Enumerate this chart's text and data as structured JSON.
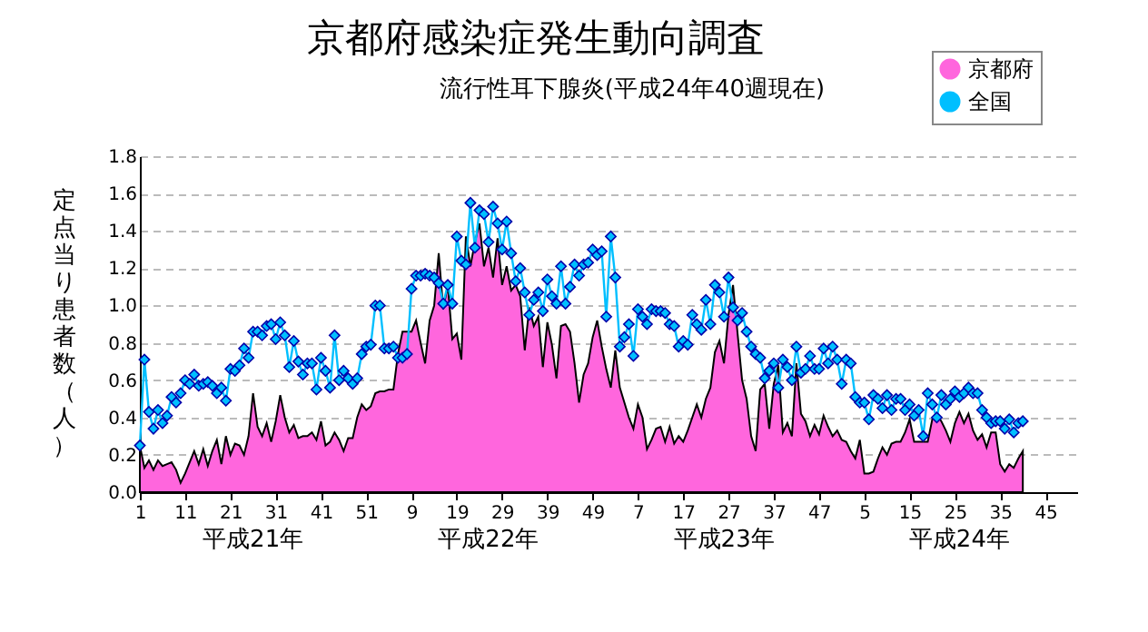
{
  "chart_data": {
    "type": "line",
    "title": "京都府感染症発生動向調査",
    "subtitle": "流行性耳下腺炎(平成24年40週現在)",
    "ylabel": "定点当り患者数（人）",
    "annotations": [
      "平成21年",
      "平成22年",
      "平成23年",
      "平成24年"
    ],
    "categories": [
      "1",
      null,
      null,
      null,
      null,
      null,
      null,
      null,
      null,
      null,
      "11",
      null,
      null,
      null,
      null,
      null,
      null,
      null,
      null,
      null,
      "21",
      null,
      null,
      null,
      null,
      null,
      null,
      null,
      null,
      null,
      "31",
      null,
      null,
      null,
      null,
      null,
      null,
      null,
      null,
      null,
      "41",
      null,
      null,
      null,
      null,
      null,
      null,
      null,
      null,
      null,
      "51",
      null,
      null,
      null,
      null,
      null,
      null,
      null,
      null,
      null,
      "9",
      null,
      null,
      null,
      null,
      null,
      null,
      null,
      null,
      null,
      "19",
      null,
      null,
      null,
      null,
      null,
      null,
      null,
      null,
      null,
      "29",
      null,
      null,
      null,
      null,
      null,
      null,
      null,
      null,
      null,
      "39",
      null,
      null,
      null,
      null,
      null,
      null,
      null,
      null,
      null,
      "49",
      null,
      null,
      null,
      null,
      null,
      null,
      null,
      null,
      null,
      "7",
      null,
      null,
      null,
      null,
      null,
      null,
      null,
      null,
      null,
      "17",
      null,
      null,
      null,
      null,
      null,
      null,
      null,
      null,
      null,
      "27",
      null,
      null,
      null,
      null,
      null,
      null,
      null,
      null,
      null,
      "37",
      null,
      null,
      null,
      null,
      null,
      null,
      null,
      null,
      null,
      "47",
      null,
      null,
      null,
      null,
      null,
      null,
      null,
      null,
      null,
      "5",
      null,
      null,
      null,
      null,
      null,
      null,
      null,
      null,
      null,
      "15",
      null,
      null,
      null,
      null,
      null,
      null,
      null,
      null,
      null,
      "25",
      null,
      null,
      null,
      null,
      null,
      null,
      null,
      null,
      null,
      "35",
      null,
      null,
      null,
      null,
      null,
      null,
      null,
      null,
      null,
      "45",
      null,
      null,
      null,
      null,
      null,
      null,
      null
    ],
    "series": [
      {
        "type": "area",
        "name": "京都府",
        "color": "#ff66dd",
        "values": [
          0.25,
          0.13,
          0.17,
          0.12,
          0.17,
          0.14,
          0.15,
          0.16,
          0.12,
          0.05,
          0.1,
          0.16,
          0.22,
          0.15,
          0.23,
          0.14,
          0.22,
          0.28,
          0.15,
          0.3,
          0.2,
          0.26,
          0.25,
          0.2,
          0.3,
          0.53,
          0.35,
          0.3,
          0.37,
          0.27,
          0.38,
          0.52,
          0.4,
          0.32,
          0.36,
          0.29,
          0.3,
          0.3,
          0.32,
          0.28,
          0.38,
          0.25,
          0.27,
          0.32,
          0.28,
          0.22,
          0.29,
          0.29,
          0.4,
          0.47,
          0.44,
          0.46,
          0.53,
          0.54,
          0.54,
          0.55,
          0.55,
          0.74,
          0.86,
          0.86,
          0.86,
          0.92,
          0.8,
          0.69,
          0.92,
          1.0,
          1.28,
          0.98,
          1.11,
          0.82,
          0.85,
          0.71,
          1.37,
          1.21,
          1.34,
          1.44,
          1.21,
          1.31,
          1.15,
          1.36,
          1.11,
          1.21,
          1.08,
          1.11,
          1.05,
          0.76,
          0.99,
          0.89,
          0.94,
          0.67,
          0.91,
          0.79,
          0.61,
          0.89,
          0.9,
          0.86,
          0.69,
          0.48,
          0.63,
          0.69,
          0.83,
          0.92,
          0.78,
          0.66,
          0.56,
          0.76,
          0.56,
          0.48,
          0.4,
          0.34,
          0.47,
          0.4,
          0.23,
          0.28,
          0.34,
          0.35,
          0.27,
          0.35,
          0.26,
          0.3,
          0.27,
          0.33,
          0.4,
          0.47,
          0.4,
          0.5,
          0.56,
          0.75,
          0.81,
          0.69,
          0.95,
          1.11,
          0.85,
          0.6,
          0.5,
          0.3,
          0.22,
          0.55,
          0.58,
          0.34,
          0.58,
          0.68,
          0.32,
          0.37,
          0.3,
          0.69,
          0.42,
          0.38,
          0.3,
          0.36,
          0.31,
          0.41,
          0.35,
          0.3,
          0.33,
          0.28,
          0.27,
          0.22,
          0.18,
          0.28,
          0.1,
          0.1,
          0.11,
          0.18,
          0.24,
          0.2,
          0.26,
          0.27,
          0.27,
          0.32,
          0.39,
          0.27,
          0.27,
          0.27,
          0.27,
          0.39,
          0.42,
          0.38,
          0.33,
          0.27,
          0.37,
          0.43,
          0.37,
          0.42,
          0.33,
          0.28,
          0.31,
          0.24,
          0.32,
          0.32,
          0.15,
          0.11,
          0.15,
          0.13,
          0.18,
          0.22,
          null,
          null,
          null,
          null,
          null,
          null,
          null,
          null,
          null,
          null,
          null,
          null
        ]
      },
      {
        "type": "line",
        "name": "全国",
        "color": "#00bfff",
        "marker": "diamond",
        "values": [
          0.25,
          0.71,
          0.43,
          0.34,
          0.44,
          0.37,
          0.41,
          0.51,
          0.48,
          0.53,
          0.6,
          0.58,
          0.63,
          0.57,
          0.58,
          0.59,
          0.57,
          0.53,
          0.56,
          0.49,
          0.66,
          0.65,
          0.68,
          0.77,
          0.72,
          0.86,
          0.86,
          0.84,
          0.89,
          0.9,
          0.82,
          0.91,
          0.84,
          0.67,
          0.81,
          0.7,
          0.63,
          0.69,
          0.69,
          0.55,
          0.72,
          0.65,
          0.56,
          0.84,
          0.6,
          0.65,
          0.61,
          0.58,
          0.61,
          0.74,
          0.78,
          0.79,
          1.0,
          1.0,
          0.77,
          0.77,
          0.78,
          0.72,
          0.72,
          0.74,
          1.09,
          1.16,
          1.16,
          1.17,
          1.16,
          1.15,
          1.12,
          1.01,
          1.11,
          1.01,
          1.37,
          1.24,
          1.22,
          1.55,
          1.31,
          1.51,
          1.49,
          1.34,
          1.53,
          1.44,
          1.3,
          1.45,
          1.28,
          1.13,
          1.2,
          1.07,
          0.95,
          1.03,
          1.07,
          0.97,
          1.14,
          1.05,
          1.01,
          1.21,
          1.01,
          1.1,
          1.22,
          1.16,
          1.22,
          1.23,
          1.3,
          1.27,
          1.29,
          0.94,
          1.37,
          1.15,
          0.78,
          0.83,
          0.9,
          0.73,
          0.98,
          0.94,
          0.9,
          0.98,
          0.97,
          0.97,
          0.96,
          0.9,
          0.89,
          0.78,
          0.81,
          0.79,
          0.95,
          0.9,
          0.87,
          1.03,
          0.9,
          1.11,
          1.07,
          0.94,
          1.15,
          0.99,
          0.92,
          0.96,
          0.86,
          0.78,
          0.74,
          0.72,
          0.61,
          0.65,
          0.69,
          0.56,
          0.71,
          0.67,
          0.6,
          0.78,
          0.64,
          0.66,
          0.73,
          0.66,
          0.66,
          0.77,
          0.69,
          0.78,
          0.71,
          0.58,
          0.71,
          0.69,
          0.51,
          0.48,
          0.48,
          0.39,
          0.52,
          0.5,
          0.45,
          0.52,
          0.44,
          0.5,
          0.5,
          0.44,
          0.47,
          0.41,
          0.44,
          0.3,
          0.53,
          0.47,
          0.4,
          0.52,
          0.47,
          0.5,
          0.54,
          0.51,
          0.53,
          0.56,
          0.53,
          0.53,
          0.44,
          0.4,
          0.37,
          0.38,
          0.38,
          0.34,
          0.39,
          0.32,
          0.37,
          0.38,
          null,
          null,
          null,
          null,
          null,
          null,
          null,
          null,
          null,
          null,
          null,
          null
        ]
      }
    ],
    "ylim": [
      0,
      1.8
    ],
    "yticks": [
      {
        "value": 0,
        "label": "0.0"
      },
      0.2,
      0.4,
      0.6,
      0.8,
      {
        "value": 1,
        "label": "1.0"
      },
      1.2,
      1.4,
      1.6,
      1.8
    ],
    "grid": "y",
    "legend": "top right"
  }
}
